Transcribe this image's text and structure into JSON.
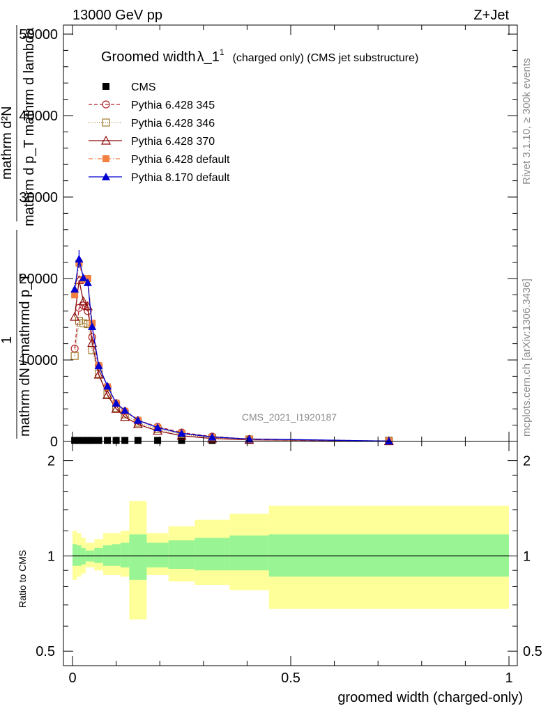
{
  "header": {
    "energy": "13000 GeV pp",
    "process": "Z+Jet"
  },
  "side": {
    "rivet": "Rivet 3.1.10, ≥ 300k events",
    "mcplots": "mcplots.cern.ch [arXiv:1306.3436]"
  },
  "watermark": "CMS_2021_I1920187",
  "main_chart": {
    "title": "Groomed width",
    "title_symbol": "λ_1",
    "title_superscript": "1",
    "title_suffix": "(charged only) (CMS jet substructure)",
    "ylabel_numerator": "mathrm d²N",
    "ylabel_denominator": "mathrm d p_T mathrm d lambda",
    "ylabel_left_num": "1",
    "ylabel_left_den": "mathrm dN / mathrmd p_T",
    "yticks": [
      "0",
      "10000",
      "20000",
      "30000",
      "40000",
      "50000"
    ],
    "legend": [
      {
        "label": "CMS",
        "color": "#000000",
        "marker": "square-filled",
        "dash": "none"
      },
      {
        "label": "Pythia 6.428 345",
        "color": "#b2242c",
        "marker": "circle-open",
        "dash": "5,3"
      },
      {
        "label": "Pythia 6.428 346",
        "color": "#a0782a",
        "marker": "square-open",
        "dash": "1,2"
      },
      {
        "label": "Pythia 6.428 370",
        "color": "#8b0a0a",
        "marker": "triangle-open",
        "dash": "none"
      },
      {
        "label": "Pythia 6.428 default",
        "color": "#f28040",
        "marker": "square-filled",
        "dash": "6,3,1,3"
      },
      {
        "label": "Pythia 8.170 default",
        "color": "#0000d0",
        "marker": "triangle-filled",
        "dash": "none"
      }
    ]
  },
  "ratio_chart": {
    "ylabel": "Ratio to CMS",
    "yticks": [
      "0.5",
      "1",
      "2"
    ],
    "xticks": [
      "0",
      "0.5",
      "1"
    ],
    "xlabel": "groomed width (charged-only)"
  },
  "chart_data": {
    "type": "line",
    "xlim": [
      0,
      1
    ],
    "ylim": [
      0,
      51000
    ],
    "bin_edges": [
      0.0,
      0.01,
      0.02,
      0.03,
      0.04,
      0.05,
      0.07,
      0.09,
      0.11,
      0.13,
      0.17,
      0.22,
      0.28,
      0.36,
      0.45,
      1.0
    ],
    "x": [
      0.005,
      0.015,
      0.025,
      0.035,
      0.045,
      0.06,
      0.08,
      0.1,
      0.12,
      0.15,
      0.195,
      0.25,
      0.32,
      0.405,
      0.725
    ],
    "series": [
      {
        "name": "CMS",
        "values": [
          120,
          120,
          120,
          120,
          120,
          120,
          120,
          120,
          120,
          120,
          120,
          120,
          120,
          120,
          120
        ]
      },
      {
        "name": "Pythia 6.428 345",
        "values": [
          11400,
          16400,
          16700,
          16000,
          12800,
          9300,
          6700,
          4700,
          3700,
          2600,
          1800,
          1100,
          600,
          300,
          50
        ]
      },
      {
        "name": "Pythia 6.428 346",
        "values": [
          10500,
          14800,
          14500,
          14400,
          11200,
          8300,
          5800,
          4100,
          3300,
          2300,
          1500,
          900,
          450,
          250,
          40
        ]
      },
      {
        "name": "Pythia 6.428 370",
        "values": [
          15300,
          19800,
          17200,
          16600,
          12100,
          8200,
          5700,
          4000,
          3000,
          2100,
          1300,
          700,
          350,
          200,
          40
        ]
      },
      {
        "name": "Pythia 6.428 default",
        "values": [
          18000,
          21900,
          19900,
          20000,
          14500,
          9300,
          6700,
          4700,
          3700,
          2600,
          1700,
          1000,
          500,
          250,
          45
        ]
      },
      {
        "name": "Pythia 8.170 default",
        "values": [
          18700,
          22400,
          20100,
          19500,
          14100,
          9300,
          6800,
          4700,
          3800,
          2600,
          1700,
          1000,
          550,
          300,
          50
        ]
      }
    ],
    "ratio": {
      "ylim": [
        0.45,
        2.3
      ],
      "log_scale": true,
      "reference": 1,
      "inner_band_low": [
        0.93,
        0.93,
        0.94,
        0.96,
        0.96,
        0.95,
        0.93,
        0.93,
        0.92,
        0.84,
        0.92,
        0.91,
        0.9,
        0.9,
        0.86
      ],
      "inner_band_high": [
        1.09,
        1.08,
        1.06,
        1.04,
        1.04,
        1.06,
        1.08,
        1.09,
        1.1,
        1.17,
        1.1,
        1.12,
        1.14,
        1.16,
        1.17
      ],
      "outer_band_low": [
        0.84,
        0.86,
        0.88,
        0.92,
        0.92,
        0.9,
        0.87,
        0.87,
        0.86,
        0.63,
        0.87,
        0.83,
        0.81,
        0.78,
        0.68
      ],
      "outer_band_high": [
        1.2,
        1.18,
        1.14,
        1.1,
        1.1,
        1.13,
        1.18,
        1.18,
        1.2,
        1.49,
        1.18,
        1.24,
        1.3,
        1.36,
        1.44
      ]
    }
  }
}
